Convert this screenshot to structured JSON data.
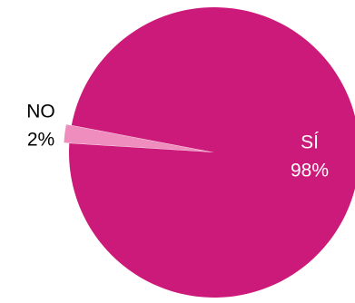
{
  "chart_data": {
    "type": "pie",
    "categories": [
      "SÍ",
      "NO"
    ],
    "values": [
      98,
      2
    ],
    "value_labels": [
      "98%",
      "2%"
    ],
    "colors": [
      "#cc1a7a",
      "#ef8dbf"
    ]
  }
}
